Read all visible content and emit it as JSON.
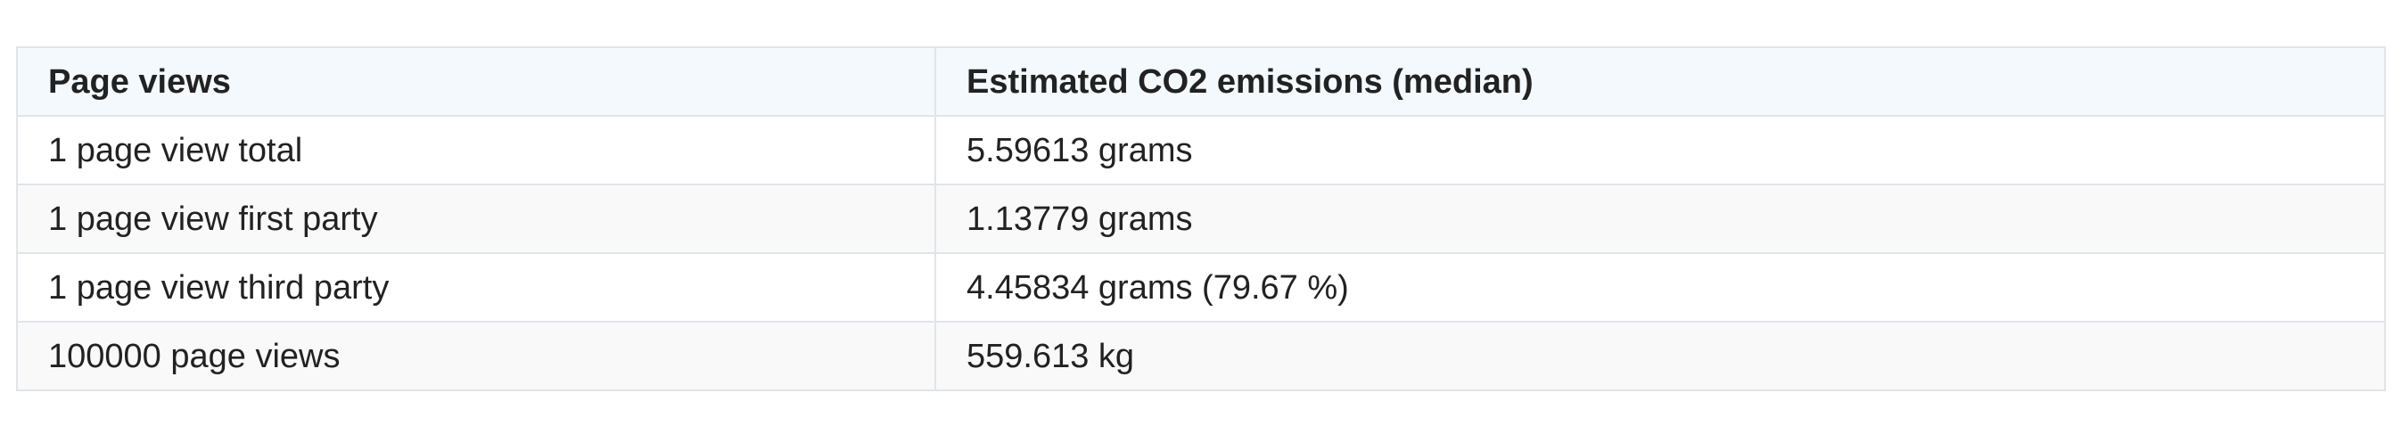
{
  "table": {
    "headers": [
      "Page views",
      "Estimated CO2 emissions (median)"
    ],
    "rows": [
      [
        "1 page view total",
        "5.59613 grams"
      ],
      [
        "1 page view first party",
        "1.13779 grams"
      ],
      [
        "1 page view third party",
        "4.45834 grams (79.67 %)"
      ],
      [
        "100000 page views",
        "559.613 kg"
      ]
    ]
  }
}
